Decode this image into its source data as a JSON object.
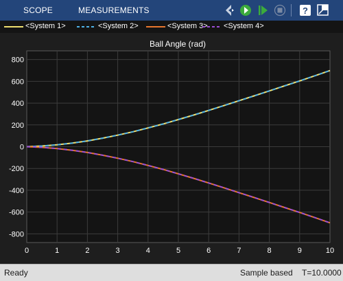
{
  "toolbar": {
    "tabs": [
      "SCOPE",
      "MEASUREMENTS"
    ],
    "icons": [
      "drag-options-icon",
      "step-back-icon",
      "run-icon",
      "step-forward-icon",
      "stop-icon",
      "help-icon",
      "undock-icon"
    ],
    "background": "#23457a"
  },
  "status_bar": {
    "state": "Ready",
    "mode": "Sample based",
    "time": "T=10.0000"
  },
  "chart_data": {
    "type": "line",
    "title": "Ball Angle (rad)",
    "xlabel": "",
    "ylabel": "",
    "xlim": [
      0,
      10
    ],
    "ylim": [
      -880,
      880
    ],
    "xticks": [
      0,
      1,
      2,
      3,
      4,
      5,
      6,
      7,
      8,
      9,
      10
    ],
    "yticks": [
      -800,
      -600,
      -400,
      -200,
      0,
      200,
      400,
      600,
      800
    ],
    "grid": true,
    "legend_position": "top",
    "background": "#141414",
    "x": [
      0,
      0.5,
      1,
      1.5,
      2,
      2.5,
      3,
      3.5,
      4,
      4.5,
      5,
      5.5,
      6,
      6.5,
      7,
      7.5,
      8,
      8.5,
      9,
      9.5,
      10
    ],
    "series": [
      {
        "name": "<System 1>",
        "color": "#f0e070",
        "dash": "solid",
        "values": [
          0,
          6,
          17,
          33,
          53,
          78,
          106,
          137,
          172,
          209,
          249,
          290,
          333,
          377,
          422,
          467,
          512,
          558,
          604,
          651,
          699
        ]
      },
      {
        "name": "<System 2>",
        "color": "#4fb3e8",
        "dash": "dashed",
        "values": [
          0,
          6,
          17,
          33,
          53,
          78,
          106,
          137,
          172,
          209,
          249,
          290,
          333,
          377,
          422,
          467,
          512,
          558,
          604,
          651,
          699
        ]
      },
      {
        "name": "<System 3>",
        "color": "#e8772e",
        "dash": "solid",
        "values": [
          0,
          -6,
          -17,
          -33,
          -53,
          -78,
          -106,
          -137,
          -172,
          -209,
          -249,
          -290,
          -333,
          -377,
          -422,
          -467,
          -512,
          -558,
          -604,
          -651,
          -699
        ]
      },
      {
        "name": "<System 4>",
        "color": "#9b4fd6",
        "dash": "dashed",
        "values": [
          0,
          -6,
          -17,
          -33,
          -53,
          -78,
          -106,
          -137,
          -172,
          -209,
          -249,
          -290,
          -333,
          -377,
          -422,
          -467,
          -512,
          -558,
          -604,
          -651,
          -699
        ]
      }
    ]
  }
}
